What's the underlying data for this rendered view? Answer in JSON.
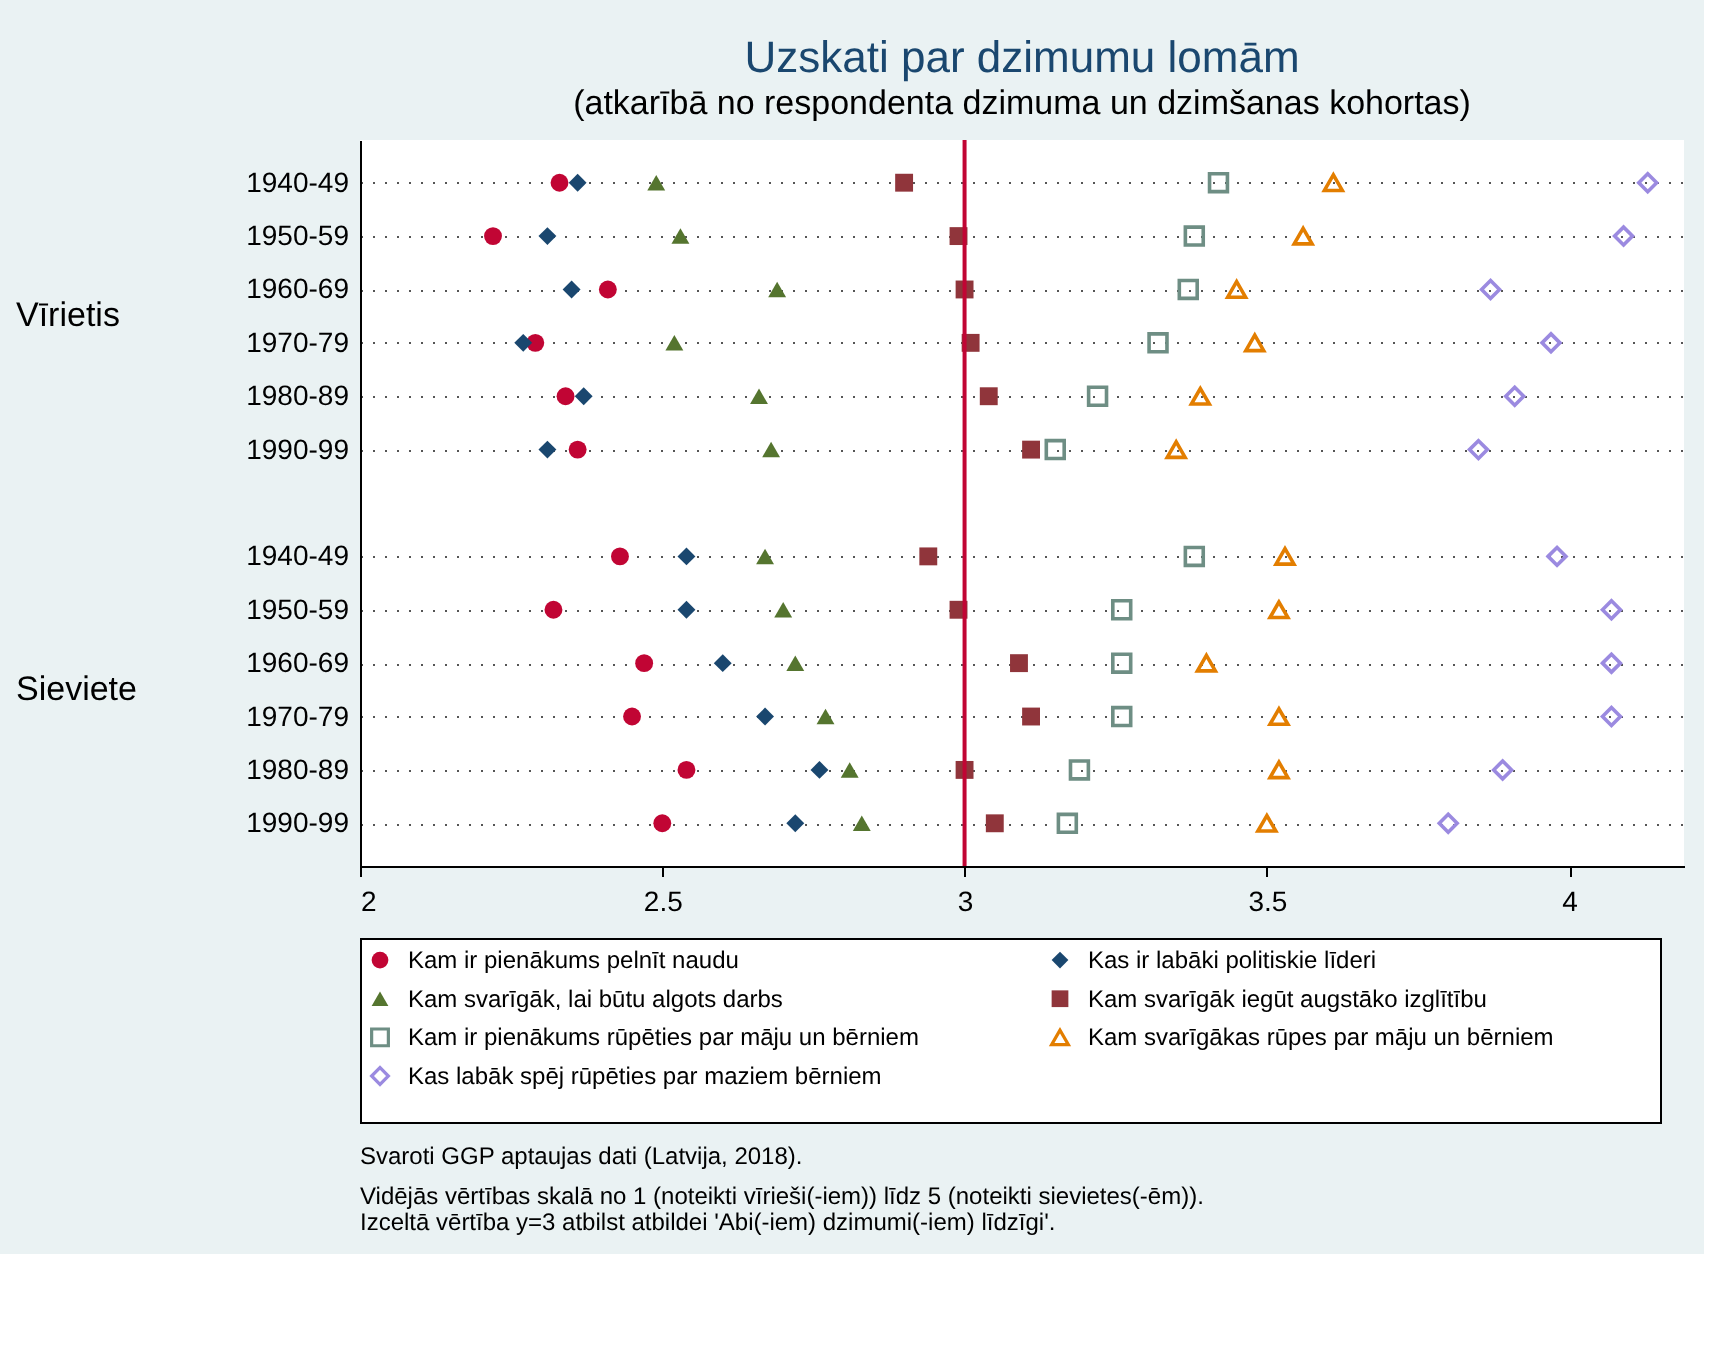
{
  "chart_data": {
    "type": "scatter",
    "orientation": "horizontal",
    "title": "Uzskati par dzimumu lomām",
    "subtitle": "(atkarībā no respondenta dzimuma un dzimšanas kohortas)",
    "categories": [
      "1940-49",
      "1950-59",
      "1960-69",
      "1970-79",
      "1980-89",
      "1990-99",
      null,
      "1940-49",
      "1950-59",
      "1960-69",
      "1970-79",
      "1980-89",
      "1990-99"
    ],
    "series": [
      {
        "name": "Kam ir pienākums pelnīt naudu",
        "color": "#c10534",
        "marker": "circle",
        "values": [
          2.33,
          2.22,
          2.41,
          2.29,
          2.34,
          2.36,
          null,
          2.43,
          2.32,
          2.47,
          2.45,
          2.54,
          2.5
        ]
      },
      {
        "name": "Kas ir labāki politiskie līderi",
        "color": "#1a476f",
        "marker": "diamond",
        "values": [
          2.36,
          2.31,
          2.35,
          2.27,
          2.37,
          2.31,
          null,
          2.54,
          2.54,
          2.6,
          2.67,
          2.76,
          2.72
        ]
      },
      {
        "name": "Kam svarīgāk, lai būtu algots darbs",
        "color": "#55752f",
        "marker": "triangle",
        "values": [
          2.49,
          2.53,
          2.69,
          2.52,
          2.66,
          2.68,
          null,
          2.67,
          2.7,
          2.72,
          2.77,
          2.81,
          2.83
        ]
      },
      {
        "name": "Kam svarīgāk iegūt augstāko izglītību",
        "color": "#90353b",
        "marker": "square",
        "values": [
          2.9,
          2.99,
          3.0,
          3.01,
          3.04,
          3.11,
          null,
          2.94,
          2.99,
          3.09,
          3.11,
          3.0,
          3.05
        ]
      },
      {
        "name": "Kam ir pienākums rūpēties par māju un bērniem",
        "color": "#6e8e84",
        "marker": "square",
        "values": [
          3.42,
          3.38,
          3.37,
          3.32,
          3.22,
          3.15,
          null,
          3.38,
          3.26,
          3.26,
          3.26,
          3.19,
          3.17
        ]
      },
      {
        "name": "Kam svarīgākas rūpes par māju un bērniem",
        "color": "#e37e00",
        "marker": "triangle",
        "values": [
          3.61,
          3.56,
          3.45,
          3.48,
          3.39,
          3.35,
          null,
          3.53,
          3.52,
          3.4,
          3.52,
          3.52,
          3.5
        ]
      },
      {
        "name": "Kas labāk spēj rūpēties par maziem bērniem",
        "color": "#9b8ae0",
        "marker": "diamond",
        "values": [
          4.13,
          4.09,
          3.87,
          3.97,
          3.91,
          3.85,
          null,
          3.98,
          4.07,
          4.07,
          4.07,
          3.89,
          3.8
        ]
      }
    ],
    "xlim": [
      2,
      4.19
    ],
    "xticks": [
      2,
      2.5,
      3,
      3.5,
      4
    ],
    "ref_lines": [
      {
        "axis": "x",
        "value": 3,
        "color": "#c10534"
      }
    ],
    "grid": "y",
    "legend": "bottom",
    "annotations": [
      "Vīrietis",
      "Sieviete",
      "Svaroti GGP aptaujas dati (Latvija, 2018).",
      "Vidējās vērtības skalā no 1 (noteikti vīrieši(-iem)) līdz 5 (noteikti sievietes(-ēm)).",
      "Izceltā vērtība y=3 atbilst atbildei 'Abi(-iem) dzimumi(-iem) līdzīgi'."
    ]
  }
}
